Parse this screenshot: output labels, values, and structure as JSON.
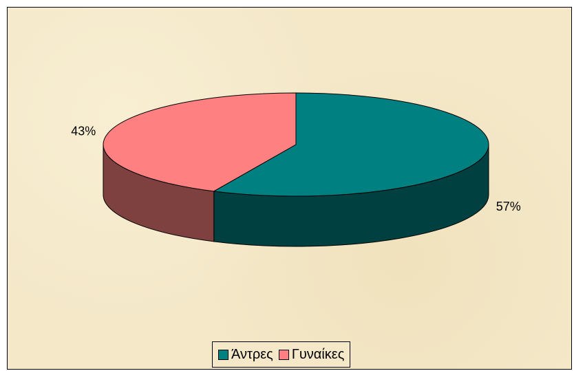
{
  "chart_data": {
    "type": "pie",
    "categories": [
      "Άντρες",
      "Γυναίκες"
    ],
    "values": [
      57,
      43
    ],
    "value_labels": [
      "57%",
      "43%"
    ],
    "colors": [
      "#008080",
      "#ff8080"
    ],
    "legend": "bottom"
  }
}
